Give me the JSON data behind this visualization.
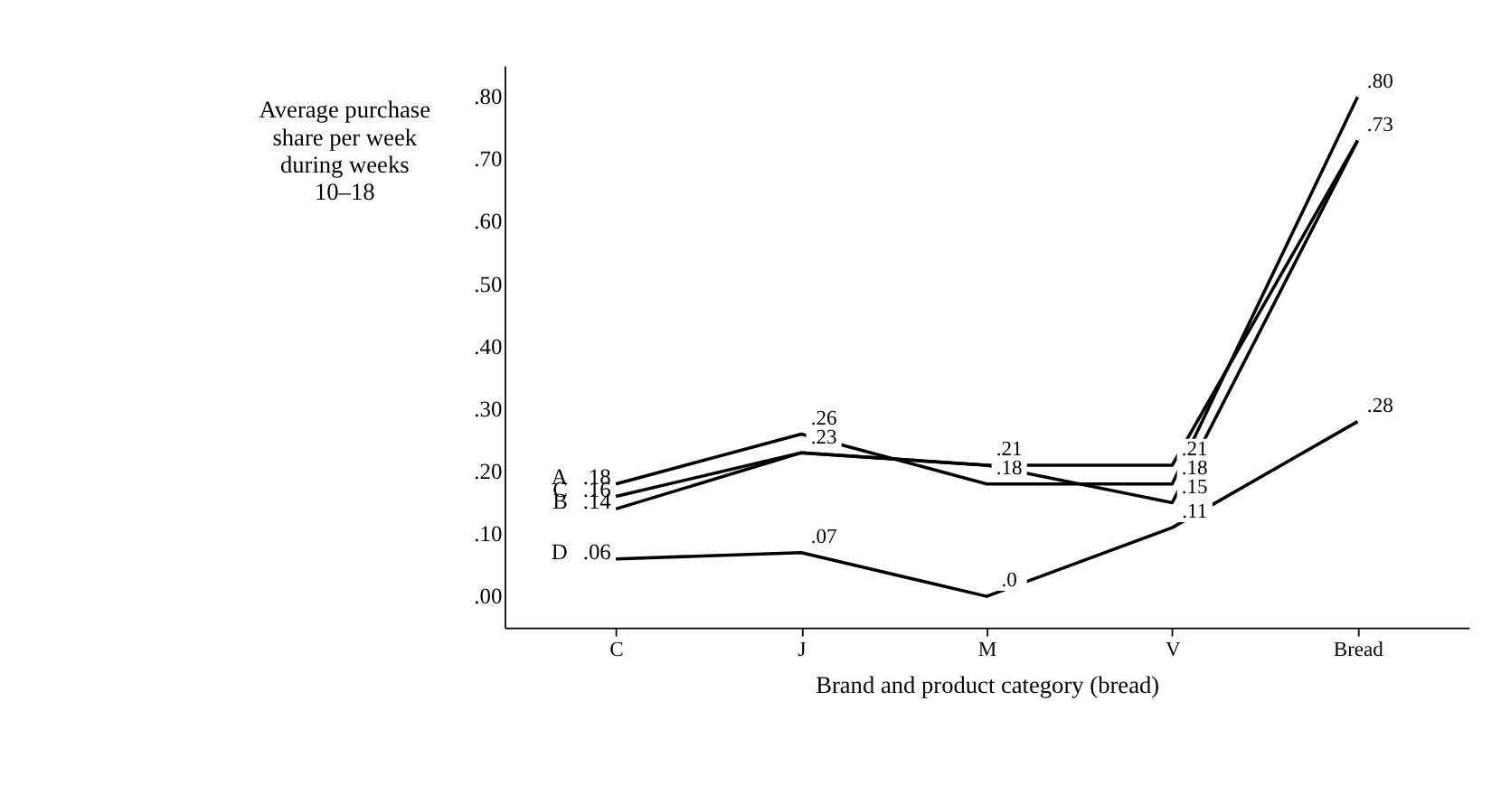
{
  "chart_data": {
    "type": "line",
    "xlabel": "Brand and product category (bread)",
    "ylabel": "Average purchase share per week during weeks 10–18",
    "categories": [
      "C",
      "J",
      "M",
      "V",
      "Bread"
    ],
    "series": [
      {
        "name": "A",
        "color": "#000000",
        "values": [
          0.18,
          0.26,
          0.18,
          0.18,
          0.8
        ],
        "value_labels": [
          ".18",
          ".26",
          ".18",
          ".18",
          ".80"
        ]
      },
      {
        "name": "C",
        "color": "#000000",
        "values": [
          0.16,
          0.23,
          0.21,
          0.21,
          0.73
        ],
        "value_labels": [
          ".16",
          ".23",
          ".21",
          ".21",
          null
        ]
      },
      {
        "name": "B",
        "color": "#000000",
        "values": [
          0.14,
          0.23,
          0.21,
          0.15,
          0.73
        ],
        "value_labels": [
          ".14",
          null,
          null,
          ".15",
          ".73"
        ]
      },
      {
        "name": "D",
        "color": "#000000",
        "values": [
          0.06,
          0.07,
          0.0,
          0.11,
          0.28
        ],
        "value_labels": [
          ".06",
          ".07",
          ".0",
          ".11",
          ".28"
        ]
      }
    ],
    "ylim": [
      -0.05,
      0.85
    ],
    "yticks": [
      {
        "value": 0,
        "label": ".00"
      },
      {
        "value": 0.1,
        "label": ".10"
      },
      {
        "value": 0.2,
        "label": ".20"
      },
      {
        "value": 0.3,
        "label": ".30"
      },
      {
        "value": 0.4,
        "label": ".40"
      },
      {
        "value": 0.5,
        "label": ".50"
      },
      {
        "value": 0.6,
        "label": ".60"
      },
      {
        "value": 0.7,
        "label": ".70"
      },
      {
        "value": 0.8,
        "label": ".80"
      }
    ],
    "grid": false,
    "marker": "none",
    "line_style": "solid"
  }
}
